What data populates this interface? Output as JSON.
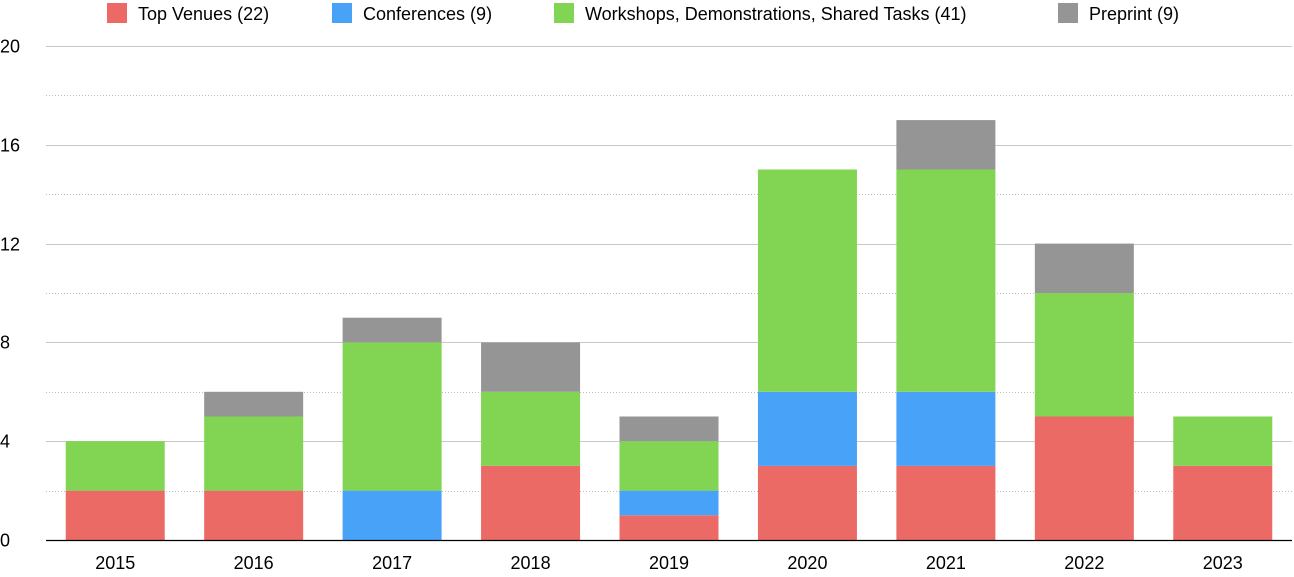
{
  "chart_data": {
    "type": "bar",
    "stacked": true,
    "title": "",
    "xlabel": "",
    "ylabel": "",
    "categories": [
      "2015",
      "2016",
      "2017",
      "2018",
      "2019",
      "2020",
      "2021",
      "2022",
      "2023"
    ],
    "series": [
      {
        "name": "Top Venues (22)",
        "color": "#EC6A65",
        "values": [
          2,
          2,
          0,
          3,
          1,
          3,
          3,
          5,
          3
        ]
      },
      {
        "name": "Conferences (9)",
        "color": "#48A2F8",
        "values": [
          0,
          0,
          2,
          0,
          1,
          3,
          3,
          0,
          0
        ]
      },
      {
        "name": "Workshops, Demonstrations, Shared Tasks (41)",
        "color": "#82D552",
        "values": [
          2,
          3,
          6,
          3,
          2,
          9,
          9,
          5,
          2
        ]
      },
      {
        "name": "Preprint (9)",
        "color": "#959595",
        "values": [
          0,
          1,
          1,
          2,
          1,
          0,
          2,
          2,
          0
        ]
      }
    ],
    "ylim": [
      0,
      20
    ],
    "yticks": [
      "0",
      "4",
      "8",
      "12",
      "16",
      "20"
    ],
    "ytick_values": [
      0,
      4,
      8,
      12,
      16,
      20
    ],
    "minor_grid_values": [
      2,
      6,
      10,
      14,
      18
    ],
    "grid": true,
    "legend_position": "top"
  }
}
